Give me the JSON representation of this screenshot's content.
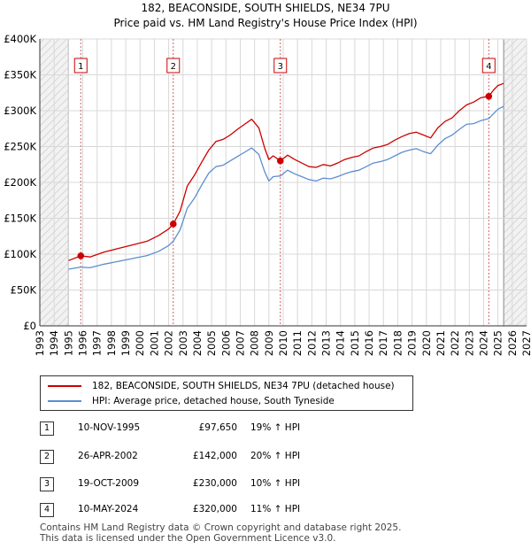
{
  "header": {
    "title": "182, BEACONSIDE, SOUTH SHIELDS, NE34 7PU",
    "subtitle": "Price paid vs. HM Land Registry's House Price Index (HPI)"
  },
  "colors": {
    "property": "#cc0000",
    "hpi": "#5b8ed1",
    "marker_dash": "#d06060",
    "grid": "#d8d8d8",
    "hatch": "#e4e4e4"
  },
  "chart_data": {
    "type": "line",
    "title": "182, BEACONSIDE, SOUTH SHIELDS, NE34 7PU",
    "xlim": [
      1993,
      2027
    ],
    "ylim": [
      0,
      400000
    ],
    "x_ticks": [
      "1993",
      "1994",
      "1995",
      "1996",
      "1997",
      "1998",
      "1999",
      "2000",
      "2001",
      "2002",
      "2003",
      "2004",
      "2005",
      "2006",
      "2007",
      "2008",
      "2009",
      "2010",
      "2011",
      "2012",
      "2013",
      "2014",
      "2015",
      "2016",
      "2017",
      "2018",
      "2019",
      "2020",
      "2021",
      "2022",
      "2023",
      "2024",
      "2025",
      "2026",
      "2027"
    ],
    "y_ticks": [
      {
        "value": 0,
        "label": "£0"
      },
      {
        "value": 50000,
        "label": "£50K"
      },
      {
        "value": 100000,
        "label": "£100K"
      },
      {
        "value": 150000,
        "label": "£150K"
      },
      {
        "value": 200000,
        "label": "£200K"
      },
      {
        "value": 250000,
        "label": "£250K"
      },
      {
        "value": 300000,
        "label": "£300K"
      },
      {
        "value": 350000,
        "label": "£350K"
      },
      {
        "value": 400000,
        "label": "£400K"
      }
    ],
    "data_range": [
      1995.0,
      2025.4
    ],
    "series": [
      {
        "name": "182, BEACONSIDE, SOUTH SHIELDS, NE34 7PU (detached house)",
        "color": "#cc0000",
        "points": [
          [
            1995.0,
            91000
          ],
          [
            1995.86,
            97650
          ],
          [
            1996.5,
            96000
          ],
          [
            1997.5,
            103000
          ],
          [
            1998.5,
            108000
          ],
          [
            1999.5,
            113000
          ],
          [
            2000.5,
            118000
          ],
          [
            2001.3,
            126000
          ],
          [
            2002.0,
            135000
          ],
          [
            2002.32,
            142000
          ],
          [
            2002.8,
            160000
          ],
          [
            2003.3,
            195000
          ],
          [
            2003.8,
            210000
          ],
          [
            2004.3,
            228000
          ],
          [
            2004.8,
            245000
          ],
          [
            2005.3,
            257000
          ],
          [
            2005.8,
            260000
          ],
          [
            2006.3,
            266000
          ],
          [
            2006.8,
            274000
          ],
          [
            2007.3,
            281000
          ],
          [
            2007.8,
            288000
          ],
          [
            2008.3,
            276000
          ],
          [
            2008.7,
            248000
          ],
          [
            2009.0,
            232000
          ],
          [
            2009.3,
            237000
          ],
          [
            2009.8,
            230000
          ],
          [
            2010.3,
            238000
          ],
          [
            2010.8,
            232000
          ],
          [
            2011.3,
            227000
          ],
          [
            2011.8,
            222000
          ],
          [
            2012.3,
            221000
          ],
          [
            2012.8,
            225000
          ],
          [
            2013.3,
            223000
          ],
          [
            2013.8,
            227000
          ],
          [
            2014.3,
            232000
          ],
          [
            2014.8,
            235000
          ],
          [
            2015.3,
            237000
          ],
          [
            2015.8,
            243000
          ],
          [
            2016.3,
            248000
          ],
          [
            2016.8,
            250000
          ],
          [
            2017.3,
            253000
          ],
          [
            2017.8,
            259000
          ],
          [
            2018.3,
            264000
          ],
          [
            2018.8,
            268000
          ],
          [
            2019.3,
            270000
          ],
          [
            2019.8,
            266000
          ],
          [
            2020.3,
            262000
          ],
          [
            2020.8,
            276000
          ],
          [
            2021.3,
            285000
          ],
          [
            2021.8,
            290000
          ],
          [
            2022.3,
            300000
          ],
          [
            2022.8,
            308000
          ],
          [
            2023.3,
            312000
          ],
          [
            2023.8,
            318000
          ],
          [
            2024.36,
            320000
          ],
          [
            2024.7,
            329000
          ],
          [
            2025.0,
            335000
          ],
          [
            2025.4,
            338000
          ]
        ]
      },
      {
        "name": "HPI: Average price, detached house, South Tyneside",
        "color": "#5b8ed1",
        "points": [
          [
            1995.0,
            79000
          ],
          [
            1995.86,
            82000
          ],
          [
            1996.5,
            81000
          ],
          [
            1997.5,
            86000
          ],
          [
            1998.5,
            90000
          ],
          [
            1999.5,
            94000
          ],
          [
            2000.5,
            98000
          ],
          [
            2001.3,
            104000
          ],
          [
            2002.0,
            112000
          ],
          [
            2002.32,
            118000
          ],
          [
            2002.8,
            134000
          ],
          [
            2003.3,
            164000
          ],
          [
            2003.8,
            178000
          ],
          [
            2004.3,
            196000
          ],
          [
            2004.8,
            213000
          ],
          [
            2005.3,
            222000
          ],
          [
            2005.8,
            224000
          ],
          [
            2006.3,
            230000
          ],
          [
            2006.8,
            236000
          ],
          [
            2007.3,
            242000
          ],
          [
            2007.8,
            248000
          ],
          [
            2008.3,
            239000
          ],
          [
            2008.7,
            215000
          ],
          [
            2009.0,
            202000
          ],
          [
            2009.3,
            208000
          ],
          [
            2009.8,
            209000
          ],
          [
            2010.3,
            217000
          ],
          [
            2010.8,
            212000
          ],
          [
            2011.3,
            208000
          ],
          [
            2011.8,
            204000
          ],
          [
            2012.3,
            202000
          ],
          [
            2012.8,
            206000
          ],
          [
            2013.3,
            205000
          ],
          [
            2013.8,
            208000
          ],
          [
            2014.3,
            212000
          ],
          [
            2014.8,
            215000
          ],
          [
            2015.3,
            217000
          ],
          [
            2015.8,
            222000
          ],
          [
            2016.3,
            227000
          ],
          [
            2016.8,
            229000
          ],
          [
            2017.3,
            232000
          ],
          [
            2017.8,
            237000
          ],
          [
            2018.3,
            242000
          ],
          [
            2018.8,
            245000
          ],
          [
            2019.3,
            247000
          ],
          [
            2019.8,
            243000
          ],
          [
            2020.3,
            240000
          ],
          [
            2020.8,
            252000
          ],
          [
            2021.3,
            261000
          ],
          [
            2021.8,
            266000
          ],
          [
            2022.3,
            274000
          ],
          [
            2022.8,
            281000
          ],
          [
            2023.3,
            282000
          ],
          [
            2023.8,
            286000
          ],
          [
            2024.36,
            289000
          ],
          [
            2024.7,
            296000
          ],
          [
            2025.0,
            302000
          ],
          [
            2025.4,
            306000
          ]
        ]
      }
    ],
    "sales": [
      {
        "label": "1",
        "x": 1995.86,
        "price": 97650
      },
      {
        "label": "2",
        "x": 2002.32,
        "price": 142000
      },
      {
        "label": "3",
        "x": 2009.8,
        "price": 230000
      },
      {
        "label": "4",
        "x": 2024.36,
        "price": 320000
      }
    ]
  },
  "legend": {
    "property": "182, BEACONSIDE, SOUTH SHIELDS, NE34 7PU (detached house)",
    "hpi": "HPI: Average price, detached house, South Tyneside"
  },
  "sales_table": [
    {
      "num": "1",
      "date": "10-NOV-1995",
      "price": "£97,650",
      "hpi": "19% ↑ HPI"
    },
    {
      "num": "2",
      "date": "26-APR-2002",
      "price": "£142,000",
      "hpi": "20% ↑ HPI"
    },
    {
      "num": "3",
      "date": "19-OCT-2009",
      "price": "£230,000",
      "hpi": "10% ↑ HPI"
    },
    {
      "num": "4",
      "date": "10-MAY-2024",
      "price": "£320,000",
      "hpi": "11% ↑ HPI"
    }
  ],
  "footer": {
    "line1": "Contains HM Land Registry data © Crown copyright and database right 2025.",
    "line2": "This data is licensed under the Open Government Licence v3.0."
  }
}
